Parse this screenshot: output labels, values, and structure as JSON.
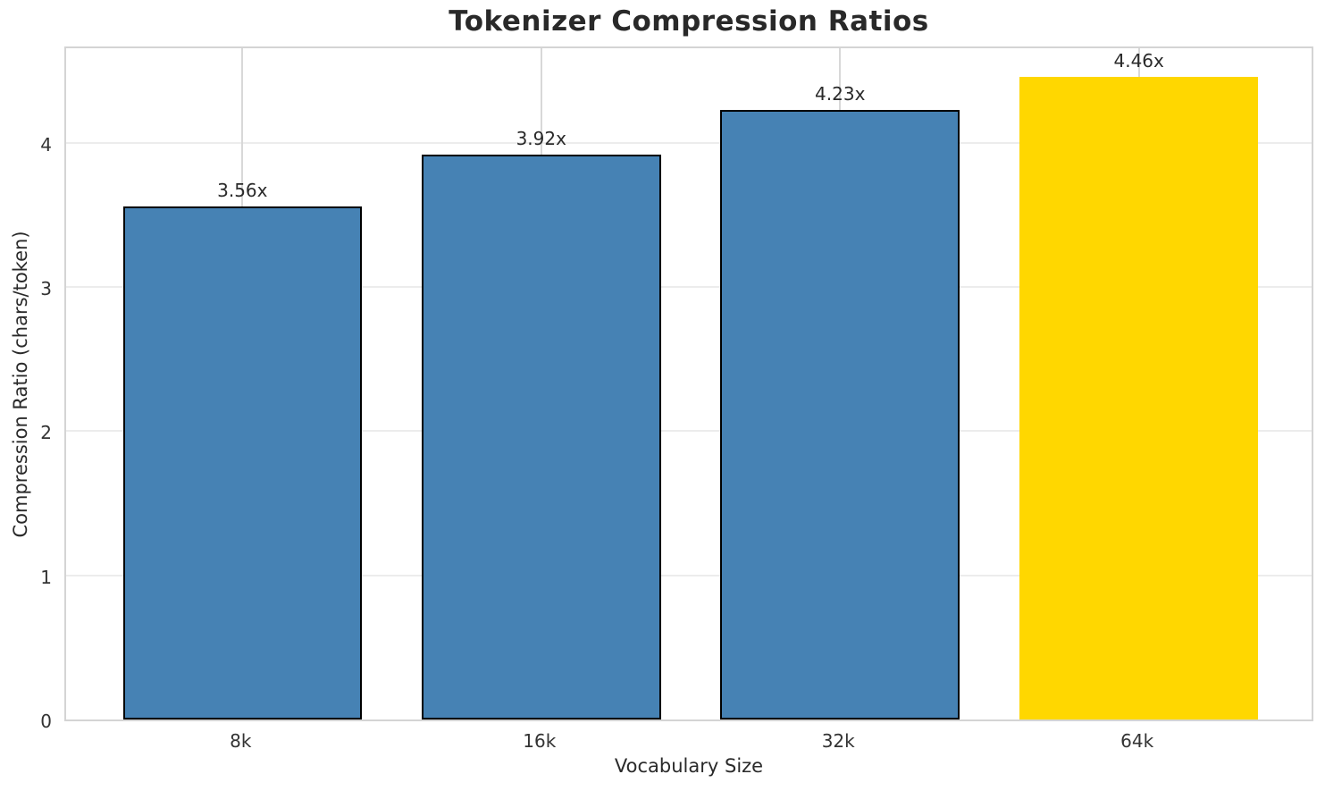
{
  "chart_data": {
    "type": "bar",
    "title": "Tokenizer Compression Ratios",
    "xlabel": "Vocabulary Size",
    "ylabel": "Compression Ratio (chars/token)",
    "categories": [
      "8k",
      "16k",
      "32k",
      "64k"
    ],
    "values": [
      3.56,
      3.92,
      4.23,
      4.46
    ],
    "value_labels": [
      "3.56x",
      "3.92x",
      "4.23x",
      "4.46x"
    ],
    "bar_colors": [
      "#4682B4",
      "#4682B4",
      "#4682B4",
      "#FFD700"
    ],
    "bar_edge_colors": [
      "#000000",
      "#000000",
      "#000000",
      "#FFD700"
    ],
    "yticks": [
      0,
      1,
      2,
      3,
      4
    ],
    "ylim": [
      0,
      4.68
    ],
    "bar_width_fraction": 0.8,
    "grid": true,
    "legend": "none",
    "colors": {
      "background": "#FFFFFF",
      "bar_default": "#4682B4",
      "bar_highlight": "#FFD700",
      "bar_edge": "#000000",
      "grid_horizontal": "#ECECEC",
      "grid_vertical": "#D8D8D8",
      "spine": "#D4D4D4",
      "title_text": "#292929",
      "label_text": "#2A2A2A",
      "tick_text": "#333333"
    }
  }
}
